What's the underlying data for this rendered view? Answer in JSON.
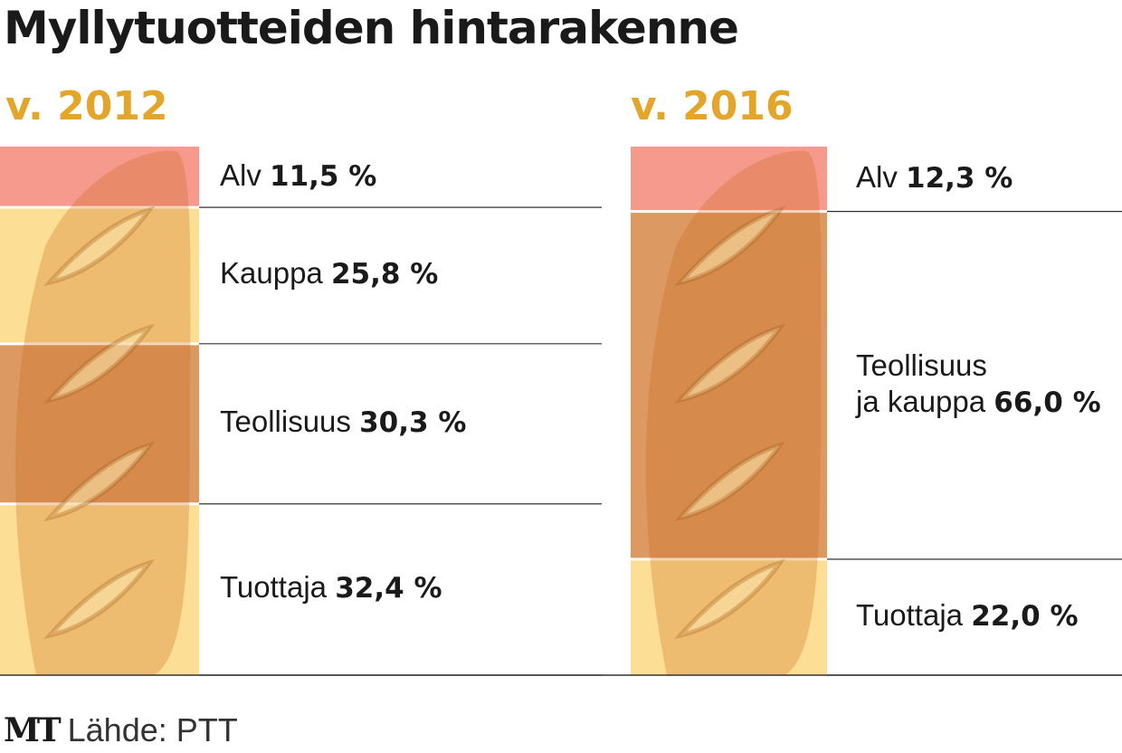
{
  "title": "Myllytuotteiden hintarakenne",
  "chart_data": [
    {
      "type": "bar",
      "stacked": true,
      "title": "v. 2012",
      "unit": "%",
      "categories": [
        "Alv",
        "Kauppa",
        "Teollisuus",
        "Tuottaja"
      ],
      "labels": [
        "Alv",
        "Kauppa",
        "Teollisuus",
        "Tuottaja"
      ],
      "values": [
        11.5,
        25.8,
        30.3,
        32.4
      ],
      "value_labels": [
        "11,5 %",
        "25,8 %",
        "30,3 %",
        "32,4 %"
      ],
      "colors": [
        "#f59a8c",
        "#fcde94",
        "#dc9a62",
        "#fcde94"
      ]
    },
    {
      "type": "bar",
      "stacked": true,
      "title": "v. 2016",
      "unit": "%",
      "categories": [
        "Alv",
        "Teollisuus ja kauppa",
        "Tuottaja"
      ],
      "labels": [
        "Alv",
        "Teollisuus\nja kauppa",
        "Tuottaja"
      ],
      "values": [
        12.3,
        66.0,
        22.0
      ],
      "value_labels": [
        "12,3 %",
        "66,0 %",
        "22,0 %"
      ],
      "colors": [
        "#f59a8c",
        "#dc9a62",
        "#fcde94"
      ]
    }
  ],
  "footer": {
    "logo": "MT",
    "source": "Lähde: PTT"
  }
}
